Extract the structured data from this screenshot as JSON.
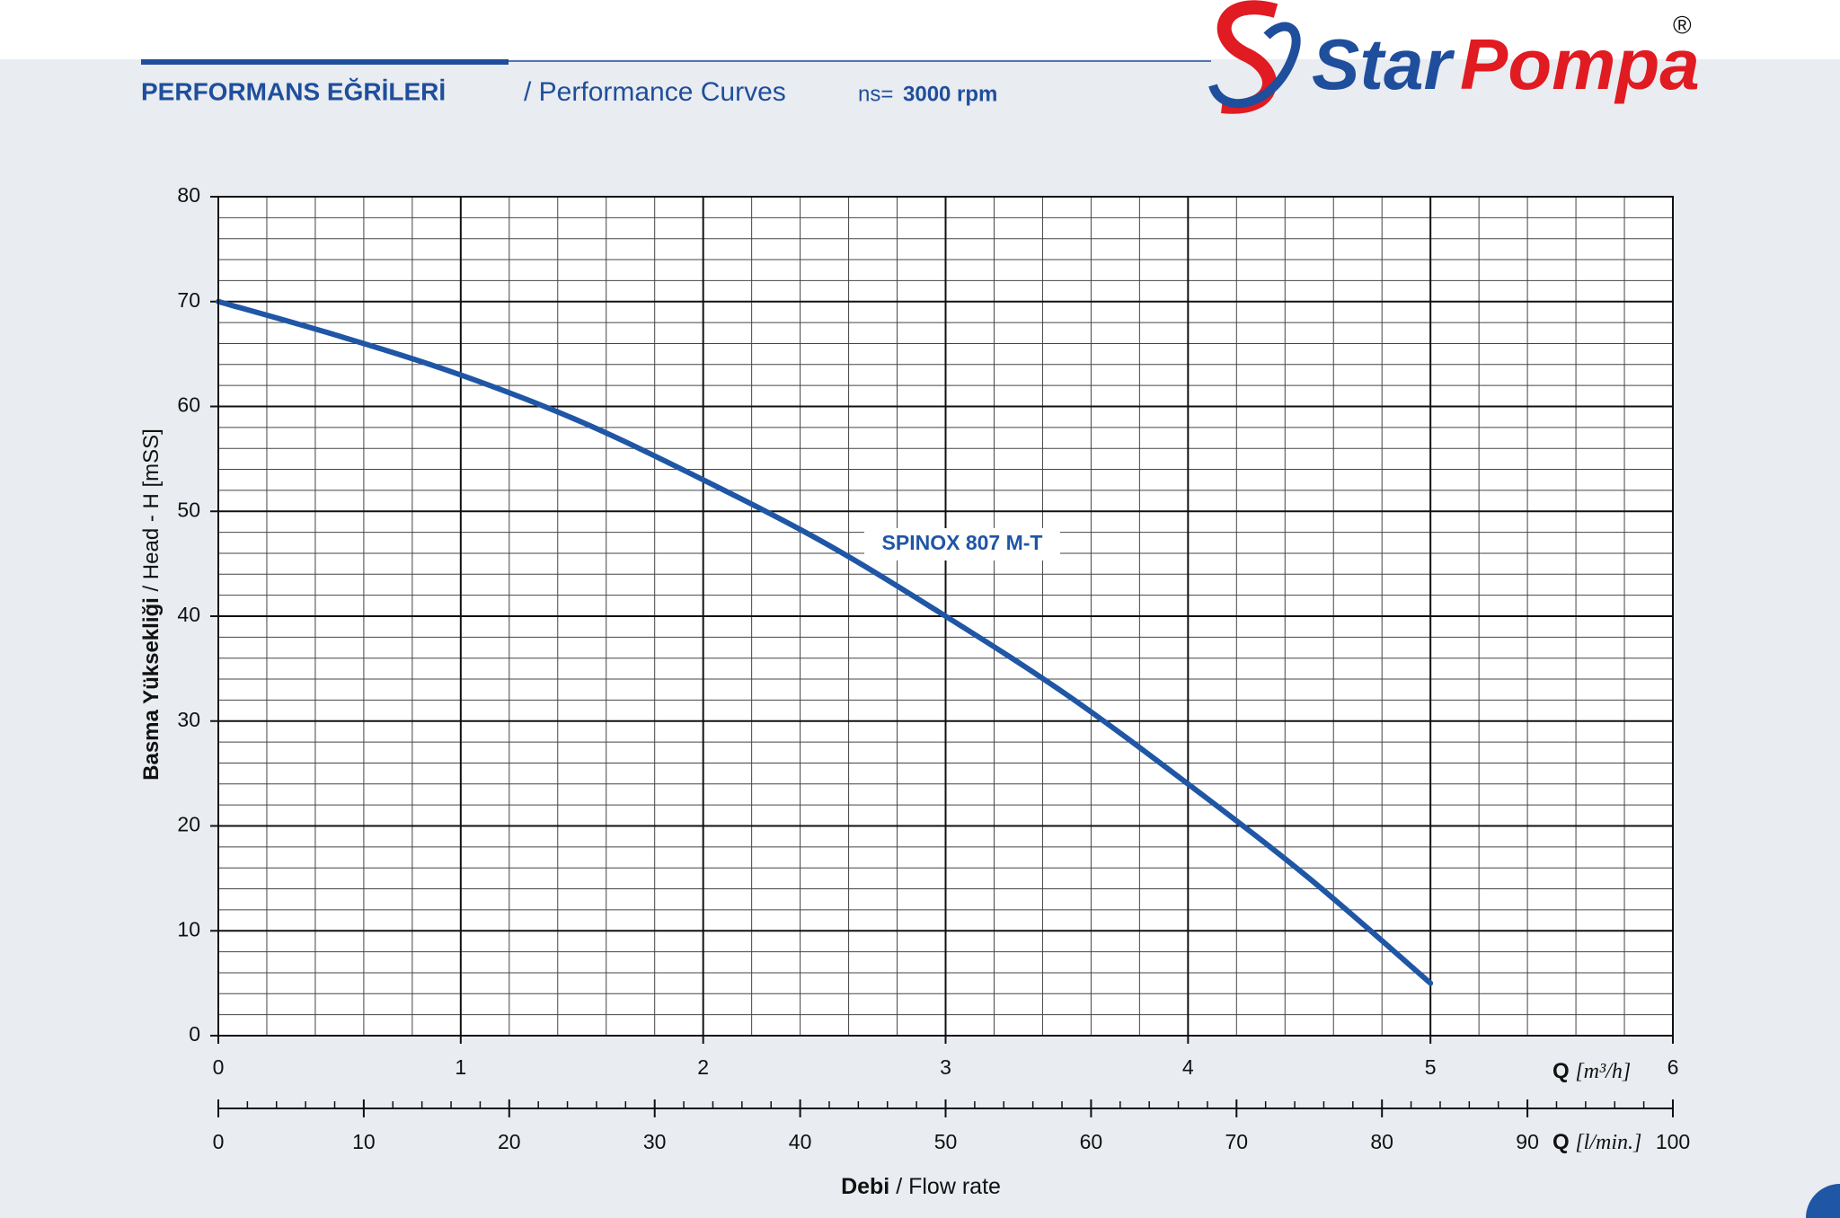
{
  "header": {
    "title": "PERFORMANS EĞRİLERİ",
    "subtitle": "/ Performance Curves",
    "speed_prefix": "ns=",
    "speed": "3000 rpm"
  },
  "logo": {
    "star": "Star",
    "pompa": "Pompa",
    "registered": "®"
  },
  "chart_data": {
    "type": "line",
    "x": [
      0,
      0.5,
      1,
      1.5,
      2,
      2.5,
      3,
      3.5,
      4,
      4.5,
      5
    ],
    "series": [
      {
        "name": "SPINOX 807 M-T",
        "color": "#1f56a5",
        "values": [
          70,
          66.7,
          63,
          58.5,
          53,
          47,
          40,
          32.5,
          24,
          15,
          5
        ]
      }
    ],
    "xlim": [
      0,
      6
    ],
    "xticks": [
      0,
      1,
      2,
      3,
      4,
      5,
      6
    ],
    "ylim": [
      0,
      80
    ],
    "yticks": [
      0,
      10,
      20,
      30,
      40,
      50,
      60,
      70,
      80
    ],
    "x2lim": [
      0,
      100
    ],
    "x2ticks": [
      0,
      10,
      20,
      30,
      40,
      50,
      60,
      70,
      80,
      90,
      100
    ],
    "x_label": {
      "symbol": "Q",
      "unit": "[m³/h]"
    },
    "x2_label": {
      "symbol": "Q",
      "unit": "[l/min.]"
    },
    "y_label": {
      "tr": "Basma Yüksekliği",
      "en": "/ Head - H [mSS]"
    },
    "flow_label": {
      "tr": "Debi",
      "en": "/ Flow rate"
    },
    "grid": true,
    "minor_divisions": 5
  }
}
